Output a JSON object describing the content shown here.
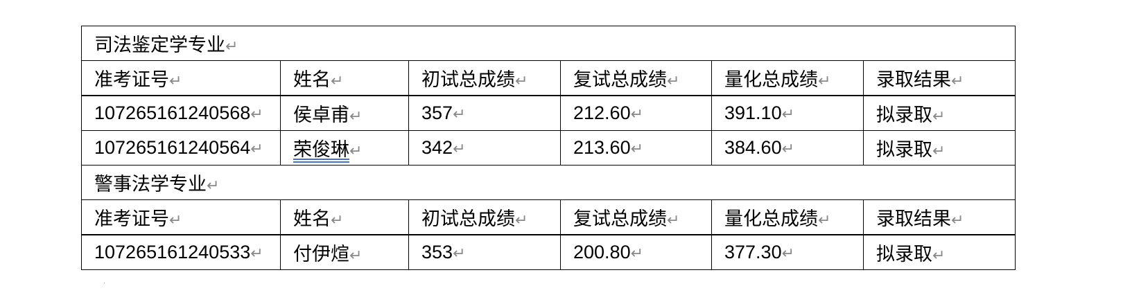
{
  "paragraph_mark": "↵",
  "sections": [
    {
      "title": "司法鉴定学专业",
      "headers": [
        "准考证号",
        "姓名",
        "初试总成绩",
        "复试总成绩",
        "量化总成绩",
        "录取结果"
      ],
      "rows": [
        [
          "107265161240568",
          "侯卓甫",
          "357",
          "212.60",
          "391.10",
          "拟录取"
        ],
        [
          "107265161240564",
          "荣俊琳",
          "342",
          "213.60",
          "384.60",
          "拟录取"
        ]
      ]
    },
    {
      "title": "警事法学专业",
      "headers": [
        "准考证号",
        "姓名",
        "初试总成绩",
        "复试总成绩",
        "量化总成绩",
        "录取结果"
      ],
      "rows": [
        [
          "107265161240533",
          "付伊煊",
          "353",
          "200.80",
          "377.30",
          "拟录取"
        ]
      ]
    }
  ]
}
